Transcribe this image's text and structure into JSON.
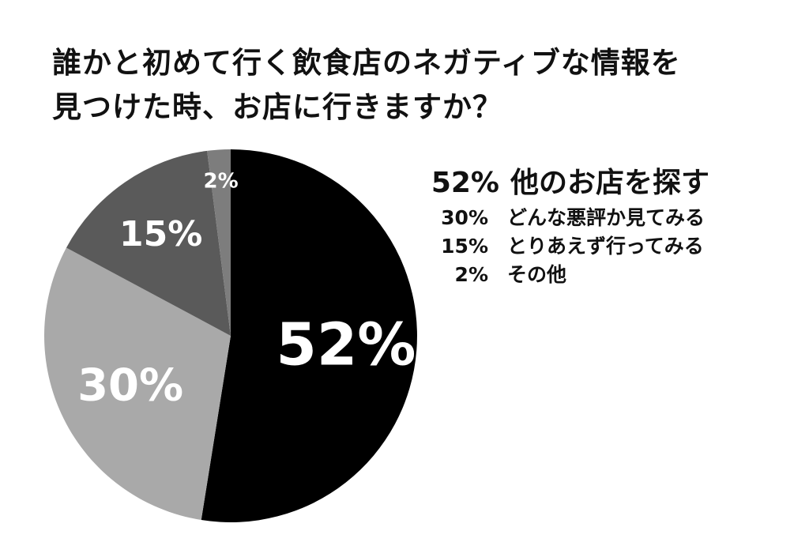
{
  "title_lines": [
    "誰かと初めて行く飲食店のネガティブな情報を",
    "見つけた時、お店に行きますか？"
  ],
  "chart_data": {
    "type": "pie",
    "title": "誰かと初めて行く飲食店のネガティブな情報を見つけた時、お店に行きますか？",
    "start_angle_deg": 0,
    "direction": "clockwise",
    "slices": [
      {
        "label": "他のお店を探す",
        "value": 52,
        "value_label": "52%",
        "color": "#000000"
      },
      {
        "label": "どんな悪評か見てみる",
        "value": 30,
        "value_label": "30%",
        "color": "#a9a9a9"
      },
      {
        "label": "とりあえず行ってみる",
        "value": 15,
        "value_label": "15%",
        "color": "#5a5a5a"
      },
      {
        "label": "その他",
        "value": 2,
        "value_label": "2%",
        "color": "#7d7d7d"
      }
    ],
    "slice_label_colors": [
      "#ffffff",
      "#111111",
      "#ffffff",
      "#ffffff"
    ],
    "legend_position": "right"
  }
}
